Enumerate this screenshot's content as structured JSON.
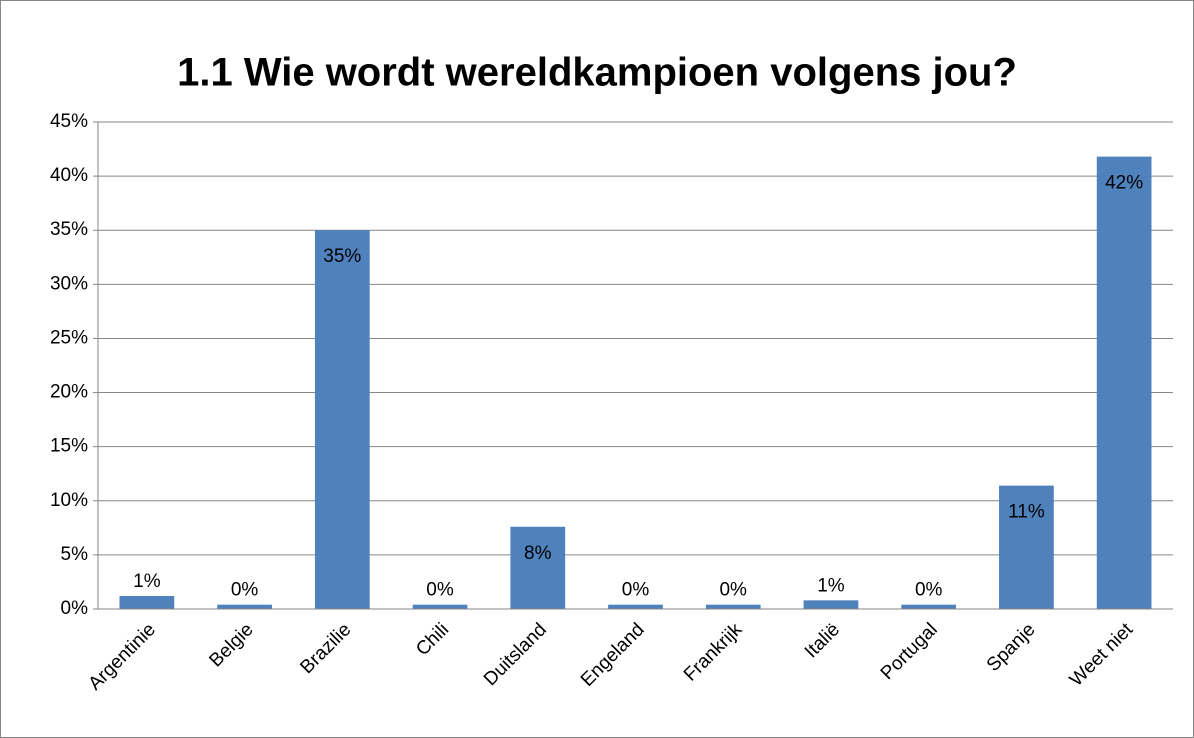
{
  "chart_data": {
    "type": "bar",
    "title": "1.1 Wie wordt wereldkampioen volgens jou?",
    "categories": [
      "Argentinie",
      "Belgie",
      "Brazilie",
      "Chili",
      "Duitsland",
      "Engeland",
      "Frankrijk",
      "Italië",
      "Portugal",
      "Spanje",
      "Weet niet"
    ],
    "values": [
      1.2,
      0.4,
      35,
      0.4,
      7.6,
      0.4,
      0.4,
      0.8,
      0.4,
      11.4,
      41.8
    ],
    "value_labels": [
      "1%",
      "0%",
      "35%",
      "0%",
      "8%",
      "0%",
      "0%",
      "1%",
      "0%",
      "11%",
      "42%"
    ],
    "color": "#4f81bd",
    "ylim": [
      0,
      45
    ],
    "yticks": [
      {
        "value": 0,
        "label": "0%"
      },
      {
        "value": 5,
        "label": "5%"
      },
      {
        "value": 10,
        "label": "10%"
      },
      {
        "value": 15,
        "label": "15%"
      },
      {
        "value": 20,
        "label": "20%"
      },
      {
        "value": 25,
        "label": "25%"
      },
      {
        "value": 30,
        "label": "30%"
      },
      {
        "value": 35,
        "label": "35%"
      },
      {
        "value": 40,
        "label": "40%"
      },
      {
        "value": 45,
        "label": "45%"
      }
    ],
    "grid": true
  }
}
